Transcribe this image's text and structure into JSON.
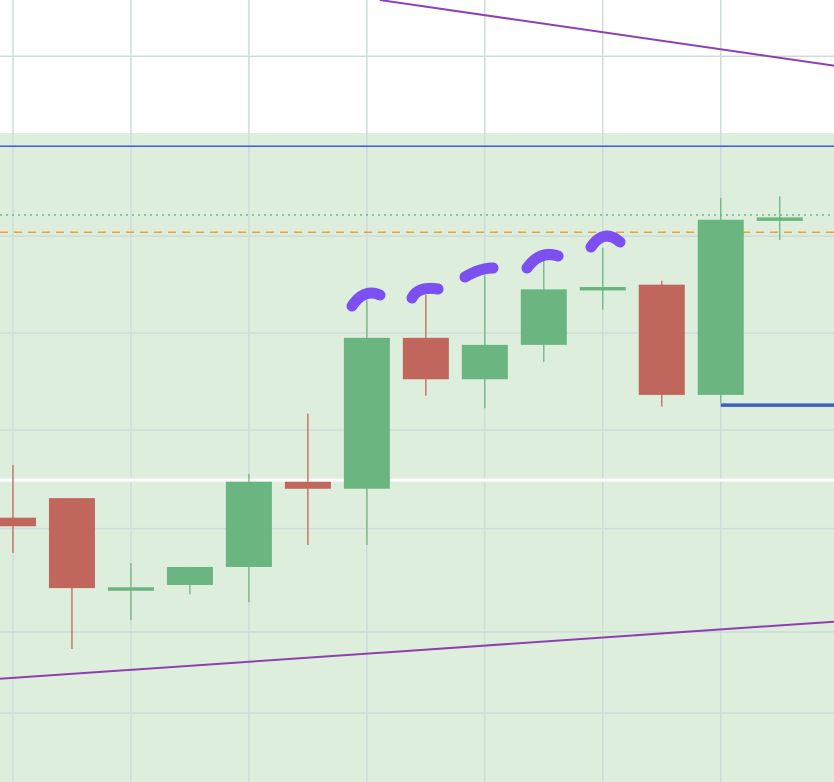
{
  "chart_data": {
    "type": "candlestick",
    "xlim": [
      -0.22,
      13.92
    ],
    "ylim": [
      0,
      100
    ],
    "up_color": "#6bb580",
    "down_color": "#c0665c",
    "shade_color": "#deeedd",
    "grid_color": "#cfdcd8",
    "shade": [
      0,
      83.0
    ],
    "xgrid": [
      0,
      2,
      4,
      6,
      8,
      10,
      12
    ],
    "ygrid": [
      92.8,
      69.8,
      57.4,
      45.0,
      32.4,
      19.2,
      8.8
    ],
    "open": [
      33.8,
      36.3,
      24.9,
      25.2,
      27.5,
      38.4,
      37.5,
      56.8,
      51.5,
      55.9,
      63.2,
      63.6,
      49.5,
      71.9
    ],
    "high": [
      40.5,
      36.3,
      28.0,
      27.5,
      39.4,
      47.1,
      61.6,
      62.3,
      64.8,
      67.0,
      68.3,
      64.1,
      74.7,
      74.9
    ],
    "low": [
      29.3,
      17.0,
      20.7,
      24.0,
      23.0,
      30.3,
      30.3,
      49.4,
      47.8,
      53.7,
      60.4,
      48.0,
      48.5,
      69.3
    ],
    "close": [
      32.7,
      24.8,
      24.9,
      27.5,
      38.4,
      37.5,
      56.8,
      51.5,
      55.9,
      63.0,
      63.3,
      49.5,
      71.9,
      72.2
    ],
    "hlines": [
      {
        "value": 81.3,
        "color": "#3b5fc8",
        "style": "solid",
        "width": 1.5
      },
      {
        "value": 72.5,
        "color": "#6bb580",
        "style": "dotted",
        "width": 1.5
      },
      {
        "value": 70.3,
        "color": "#f0a030",
        "style": "dashed",
        "width": 1.5
      },
      {
        "value": 38.6,
        "color": "#ffffff",
        "style": "solid",
        "width": 3
      },
      {
        "value": 48.2,
        "color": "#3b5fc8",
        "style": "solid",
        "width": 3.5,
        "x": [
          12,
          14
        ]
      }
    ],
    "trendlines": [
      {
        "x": [
          6.22,
          13.92
        ],
        "values": [
          100,
          91.6
        ],
        "color": "#8e3fb0"
      },
      {
        "x": [
          -0.22,
          13.92
        ],
        "values": [
          13.2,
          20.5
        ],
        "color": "#8e3fb0"
      }
    ]
  }
}
